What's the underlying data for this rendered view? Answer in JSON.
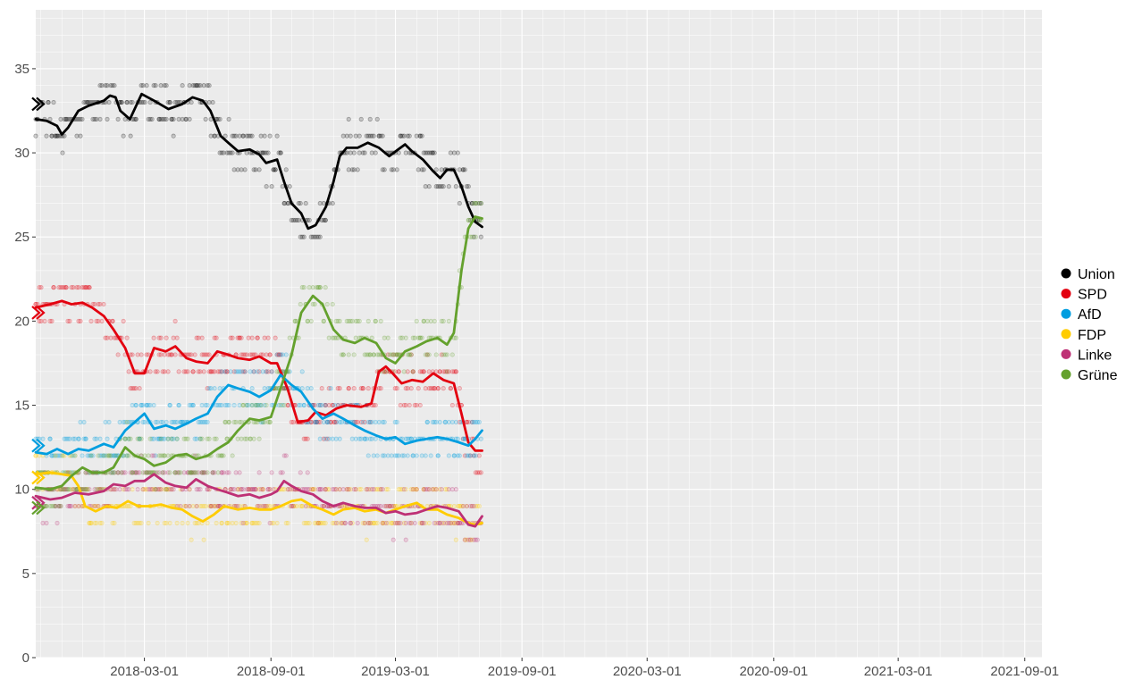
{
  "chart_data": {
    "type": "line",
    "title": "",
    "xlabel": "",
    "ylabel": "",
    "ylim": [
      0,
      38.5
    ],
    "xlim": [
      "2017-09-24",
      "2021-09-26"
    ],
    "grid": true,
    "legend_position": "right",
    "y_ticks": [
      0,
      5,
      10,
      15,
      20,
      25,
      30,
      35
    ],
    "x_ticks": [
      "2018-03-01",
      "2018-09-01",
      "2019-03-01",
      "2019-09-01",
      "2020-03-01",
      "2020-09-01",
      "2021-03-01",
      "2021-09-01"
    ],
    "series": [
      {
        "name": "Union",
        "color": "#000000",
        "election_value": 32.9,
        "points": [
          [
            "2017-09-24",
            32.0
          ],
          [
            "2017-10-10",
            31.9
          ],
          [
            "2017-10-25",
            31.6
          ],
          [
            "2017-11-01",
            31.1
          ],
          [
            "2017-11-10",
            31.5
          ],
          [
            "2017-11-25",
            32.5
          ],
          [
            "2017-12-10",
            32.8
          ],
          [
            "2018-01-01",
            33.1
          ],
          [
            "2018-01-10",
            33.4
          ],
          [
            "2018-01-18",
            33.3
          ],
          [
            "2018-01-25",
            32.5
          ],
          [
            "2018-02-08",
            32.0
          ],
          [
            "2018-02-25",
            33.5
          ],
          [
            "2018-03-15",
            33.1
          ],
          [
            "2018-04-05",
            32.6
          ],
          [
            "2018-04-25",
            32.9
          ],
          [
            "2018-05-10",
            33.3
          ],
          [
            "2018-05-25",
            33.1
          ],
          [
            "2018-06-05",
            32.5
          ],
          [
            "2018-06-20",
            31.0
          ],
          [
            "2018-07-01",
            30.6
          ],
          [
            "2018-07-15",
            30.1
          ],
          [
            "2018-08-01",
            30.2
          ],
          [
            "2018-08-15",
            29.9
          ],
          [
            "2018-08-25",
            29.4
          ],
          [
            "2018-09-10",
            29.6
          ],
          [
            "2018-09-20",
            28.3
          ],
          [
            "2018-10-01",
            27.0
          ],
          [
            "2018-10-15",
            26.4
          ],
          [
            "2018-10-25",
            25.5
          ],
          [
            "2018-11-05",
            25.7
          ],
          [
            "2018-11-20",
            26.8
          ],
          [
            "2018-12-01",
            28.3
          ],
          [
            "2018-12-10",
            29.8
          ],
          [
            "2018-12-20",
            30.3
          ],
          [
            "2019-01-05",
            30.3
          ],
          [
            "2019-01-20",
            30.6
          ],
          [
            "2019-02-05",
            30.3
          ],
          [
            "2019-02-20",
            29.8
          ],
          [
            "2019-03-05",
            30.2
          ],
          [
            "2019-03-15",
            30.5
          ],
          [
            "2019-03-25",
            30.1
          ],
          [
            "2019-04-10",
            29.6
          ],
          [
            "2019-04-25",
            28.9
          ],
          [
            "2019-05-05",
            28.5
          ],
          [
            "2019-05-15",
            29.0
          ],
          [
            "2019-05-25",
            29.0
          ],
          [
            "2019-06-05",
            28.0
          ],
          [
            "2019-06-15",
            26.8
          ],
          [
            "2019-06-25",
            25.9
          ],
          [
            "2019-07-05",
            25.6
          ]
        ]
      },
      {
        "name": "SPD",
        "color": "#e3000f",
        "election_value": 20.5,
        "points": [
          [
            "2017-09-24",
            20.8
          ],
          [
            "2017-10-15",
            21.0
          ],
          [
            "2017-11-01",
            21.2
          ],
          [
            "2017-11-15",
            21.0
          ],
          [
            "2017-12-01",
            21.1
          ],
          [
            "2017-12-15",
            20.8
          ],
          [
            "2018-01-01",
            20.3
          ],
          [
            "2018-01-15",
            19.5
          ],
          [
            "2018-02-01",
            18.4
          ],
          [
            "2018-02-15",
            16.9
          ],
          [
            "2018-03-01",
            16.9
          ],
          [
            "2018-03-15",
            18.4
          ],
          [
            "2018-04-01",
            18.2
          ],
          [
            "2018-04-15",
            18.5
          ],
          [
            "2018-05-01",
            17.8
          ],
          [
            "2018-05-15",
            17.6
          ],
          [
            "2018-06-01",
            17.5
          ],
          [
            "2018-06-15",
            18.2
          ],
          [
            "2018-07-01",
            18.0
          ],
          [
            "2018-07-15",
            17.8
          ],
          [
            "2018-08-01",
            17.7
          ],
          [
            "2018-08-15",
            17.9
          ],
          [
            "2018-09-01",
            17.5
          ],
          [
            "2018-09-10",
            17.5
          ],
          [
            "2018-09-25",
            16.0
          ],
          [
            "2018-10-10",
            14.0
          ],
          [
            "2018-10-25",
            14.1
          ],
          [
            "2018-11-05",
            14.6
          ],
          [
            "2018-11-20",
            14.4
          ],
          [
            "2018-12-05",
            14.8
          ],
          [
            "2018-12-20",
            15.0
          ],
          [
            "2019-01-10",
            14.9
          ],
          [
            "2019-01-25",
            15.1
          ],
          [
            "2019-02-05",
            17.0
          ],
          [
            "2019-02-15",
            17.3
          ],
          [
            "2019-02-25",
            16.9
          ],
          [
            "2019-03-10",
            16.3
          ],
          [
            "2019-03-25",
            16.5
          ],
          [
            "2019-04-10",
            16.4
          ],
          [
            "2019-04-25",
            16.9
          ],
          [
            "2019-05-10",
            16.5
          ],
          [
            "2019-05-25",
            16.3
          ],
          [
            "2019-06-05",
            14.5
          ],
          [
            "2019-06-15",
            12.8
          ],
          [
            "2019-06-25",
            12.3
          ],
          [
            "2019-07-05",
            12.3
          ]
        ]
      },
      {
        "name": "AfD",
        "color": "#009ee0",
        "election_value": 12.6,
        "points": [
          [
            "2017-09-24",
            12.2
          ],
          [
            "2017-10-10",
            12.1
          ],
          [
            "2017-10-25",
            12.4
          ],
          [
            "2017-11-10",
            12.1
          ],
          [
            "2017-11-25",
            12.4
          ],
          [
            "2017-12-10",
            12.3
          ],
          [
            "2018-01-01",
            12.7
          ],
          [
            "2018-01-15",
            12.5
          ],
          [
            "2018-02-01",
            13.5
          ],
          [
            "2018-02-15",
            14.0
          ],
          [
            "2018-03-01",
            14.5
          ],
          [
            "2018-03-15",
            13.6
          ],
          [
            "2018-04-01",
            13.8
          ],
          [
            "2018-04-15",
            13.6
          ],
          [
            "2018-05-01",
            13.9
          ],
          [
            "2018-05-15",
            14.2
          ],
          [
            "2018-06-01",
            14.5
          ],
          [
            "2018-06-15",
            15.5
          ],
          [
            "2018-07-01",
            16.2
          ],
          [
            "2018-07-15",
            16.0
          ],
          [
            "2018-08-01",
            15.8
          ],
          [
            "2018-08-15",
            15.5
          ],
          [
            "2018-09-01",
            15.9
          ],
          [
            "2018-09-15",
            16.8
          ],
          [
            "2018-10-01",
            16.2
          ],
          [
            "2018-10-15",
            15.8
          ],
          [
            "2018-11-01",
            14.8
          ],
          [
            "2018-11-15",
            14.2
          ],
          [
            "2018-12-01",
            14.5
          ],
          [
            "2018-12-15",
            14.2
          ],
          [
            "2019-01-01",
            13.8
          ],
          [
            "2019-01-15",
            13.5
          ],
          [
            "2019-02-01",
            13.2
          ],
          [
            "2019-02-15",
            13.0
          ],
          [
            "2019-03-01",
            13.1
          ],
          [
            "2019-03-15",
            12.7
          ],
          [
            "2019-04-01",
            12.9
          ],
          [
            "2019-04-15",
            13.0
          ],
          [
            "2019-05-01",
            13.1
          ],
          [
            "2019-05-15",
            13.0
          ],
          [
            "2019-06-01",
            12.8
          ],
          [
            "2019-06-15",
            12.6
          ],
          [
            "2019-06-25",
            13.0
          ],
          [
            "2019-07-05",
            13.5
          ]
        ]
      },
      {
        "name": "FDP",
        "color": "#ffcc00",
        "election_value": 10.7,
        "points": [
          [
            "2017-09-24",
            10.9
          ],
          [
            "2017-10-15",
            11.0
          ],
          [
            "2017-11-01",
            10.9
          ],
          [
            "2017-11-15",
            10.8
          ],
          [
            "2017-11-25",
            10.2
          ],
          [
            "2017-12-05",
            9.0
          ],
          [
            "2017-12-20",
            8.7
          ],
          [
            "2018-01-05",
            9.0
          ],
          [
            "2018-01-20",
            8.9
          ],
          [
            "2018-02-05",
            9.3
          ],
          [
            "2018-02-20",
            9.0
          ],
          [
            "2018-03-10",
            9.0
          ],
          [
            "2018-03-25",
            9.1
          ],
          [
            "2018-04-10",
            8.9
          ],
          [
            "2018-04-25",
            8.8
          ],
          [
            "2018-05-10",
            8.4
          ],
          [
            "2018-05-25",
            8.1
          ],
          [
            "2018-06-10",
            8.5
          ],
          [
            "2018-06-25",
            9.0
          ],
          [
            "2018-07-15",
            8.8
          ],
          [
            "2018-08-01",
            8.9
          ],
          [
            "2018-08-15",
            8.8
          ],
          [
            "2018-09-01",
            8.8
          ],
          [
            "2018-09-15",
            9.0
          ],
          [
            "2018-10-01",
            9.3
          ],
          [
            "2018-10-15",
            9.4
          ],
          [
            "2018-11-01",
            9.0
          ],
          [
            "2018-11-15",
            8.8
          ],
          [
            "2018-12-01",
            8.5
          ],
          [
            "2018-12-15",
            8.8
          ],
          [
            "2019-01-01",
            8.9
          ],
          [
            "2019-01-15",
            8.7
          ],
          [
            "2019-02-01",
            8.8
          ],
          [
            "2019-02-15",
            8.6
          ],
          [
            "2019-03-01",
            8.8
          ],
          [
            "2019-03-15",
            9.0
          ],
          [
            "2019-04-01",
            9.2
          ],
          [
            "2019-04-15",
            8.8
          ],
          [
            "2019-05-01",
            8.8
          ],
          [
            "2019-05-15",
            8.5
          ],
          [
            "2019-06-01",
            8.3
          ],
          [
            "2019-06-15",
            8.0
          ],
          [
            "2019-06-25",
            7.9
          ],
          [
            "2019-07-05",
            8.0
          ]
        ]
      },
      {
        "name": "Linke",
        "color": "#be3075",
        "election_value": 9.2,
        "points": [
          [
            "2017-09-24",
            9.6
          ],
          [
            "2017-10-15",
            9.4
          ],
          [
            "2017-11-01",
            9.5
          ],
          [
            "2017-11-20",
            9.8
          ],
          [
            "2017-12-10",
            9.7
          ],
          [
            "2018-01-01",
            9.9
          ],
          [
            "2018-01-15",
            10.3
          ],
          [
            "2018-02-01",
            10.2
          ],
          [
            "2018-02-15",
            10.5
          ],
          [
            "2018-03-01",
            10.5
          ],
          [
            "2018-03-15",
            10.9
          ],
          [
            "2018-04-01",
            10.4
          ],
          [
            "2018-04-15",
            10.2
          ],
          [
            "2018-05-01",
            10.1
          ],
          [
            "2018-05-15",
            10.6
          ],
          [
            "2018-06-01",
            10.2
          ],
          [
            "2018-06-15",
            10.0
          ],
          [
            "2018-07-01",
            9.8
          ],
          [
            "2018-07-15",
            9.6
          ],
          [
            "2018-08-01",
            9.7
          ],
          [
            "2018-08-15",
            9.5
          ],
          [
            "2018-09-01",
            9.7
          ],
          [
            "2018-09-10",
            9.9
          ],
          [
            "2018-09-20",
            10.5
          ],
          [
            "2018-10-01",
            10.2
          ],
          [
            "2018-10-15",
            9.9
          ],
          [
            "2018-11-01",
            9.7
          ],
          [
            "2018-11-15",
            9.3
          ],
          [
            "2018-12-01",
            9.0
          ],
          [
            "2018-12-15",
            9.2
          ],
          [
            "2019-01-01",
            9.0
          ],
          [
            "2019-01-15",
            8.9
          ],
          [
            "2019-02-01",
            8.9
          ],
          [
            "2019-02-15",
            8.6
          ],
          [
            "2019-03-01",
            8.7
          ],
          [
            "2019-03-15",
            8.5
          ],
          [
            "2019-04-01",
            8.6
          ],
          [
            "2019-04-15",
            8.8
          ],
          [
            "2019-05-01",
            9.0
          ],
          [
            "2019-05-15",
            8.9
          ],
          [
            "2019-06-01",
            8.7
          ],
          [
            "2019-06-15",
            7.9
          ],
          [
            "2019-06-25",
            7.8
          ],
          [
            "2019-07-05",
            8.4
          ]
        ]
      },
      {
        "name": "Grüne",
        "color": "#64a12d",
        "election_value": 8.9,
        "points": [
          [
            "2017-09-24",
            10.1
          ],
          [
            "2017-10-15",
            10.0
          ],
          [
            "2017-11-01",
            10.2
          ],
          [
            "2017-11-15",
            10.8
          ],
          [
            "2017-12-01",
            11.3
          ],
          [
            "2017-12-15",
            11.0
          ],
          [
            "2018-01-01",
            11.0
          ],
          [
            "2018-01-15",
            11.3
          ],
          [
            "2018-02-01",
            12.5
          ],
          [
            "2018-02-15",
            12.0
          ],
          [
            "2018-03-01",
            11.8
          ],
          [
            "2018-03-15",
            11.4
          ],
          [
            "2018-04-01",
            11.6
          ],
          [
            "2018-04-15",
            12.0
          ],
          [
            "2018-05-01",
            12.1
          ],
          [
            "2018-05-15",
            11.8
          ],
          [
            "2018-06-01",
            12.0
          ],
          [
            "2018-06-15",
            12.4
          ],
          [
            "2018-07-01",
            12.8
          ],
          [
            "2018-07-15",
            13.5
          ],
          [
            "2018-08-01",
            14.2
          ],
          [
            "2018-08-15",
            14.1
          ],
          [
            "2018-09-01",
            14.3
          ],
          [
            "2018-09-15",
            16.0
          ],
          [
            "2018-10-01",
            18.0
          ],
          [
            "2018-10-15",
            20.5
          ],
          [
            "2018-11-01",
            21.5
          ],
          [
            "2018-11-15",
            21.0
          ],
          [
            "2018-12-01",
            19.5
          ],
          [
            "2018-12-15",
            18.9
          ],
          [
            "2019-01-01",
            18.7
          ],
          [
            "2019-01-15",
            19.0
          ],
          [
            "2019-02-01",
            18.7
          ],
          [
            "2019-02-15",
            17.8
          ],
          [
            "2019-03-01",
            17.5
          ],
          [
            "2019-03-15",
            18.2
          ],
          [
            "2019-04-01",
            18.5
          ],
          [
            "2019-04-15",
            18.8
          ],
          [
            "2019-05-01",
            19.0
          ],
          [
            "2019-05-15",
            18.6
          ],
          [
            "2019-05-25",
            19.3
          ],
          [
            "2019-06-05",
            23.0
          ],
          [
            "2019-06-15",
            25.5
          ],
          [
            "2019-06-25",
            26.2
          ],
          [
            "2019-07-05",
            26.1
          ]
        ]
      }
    ]
  }
}
